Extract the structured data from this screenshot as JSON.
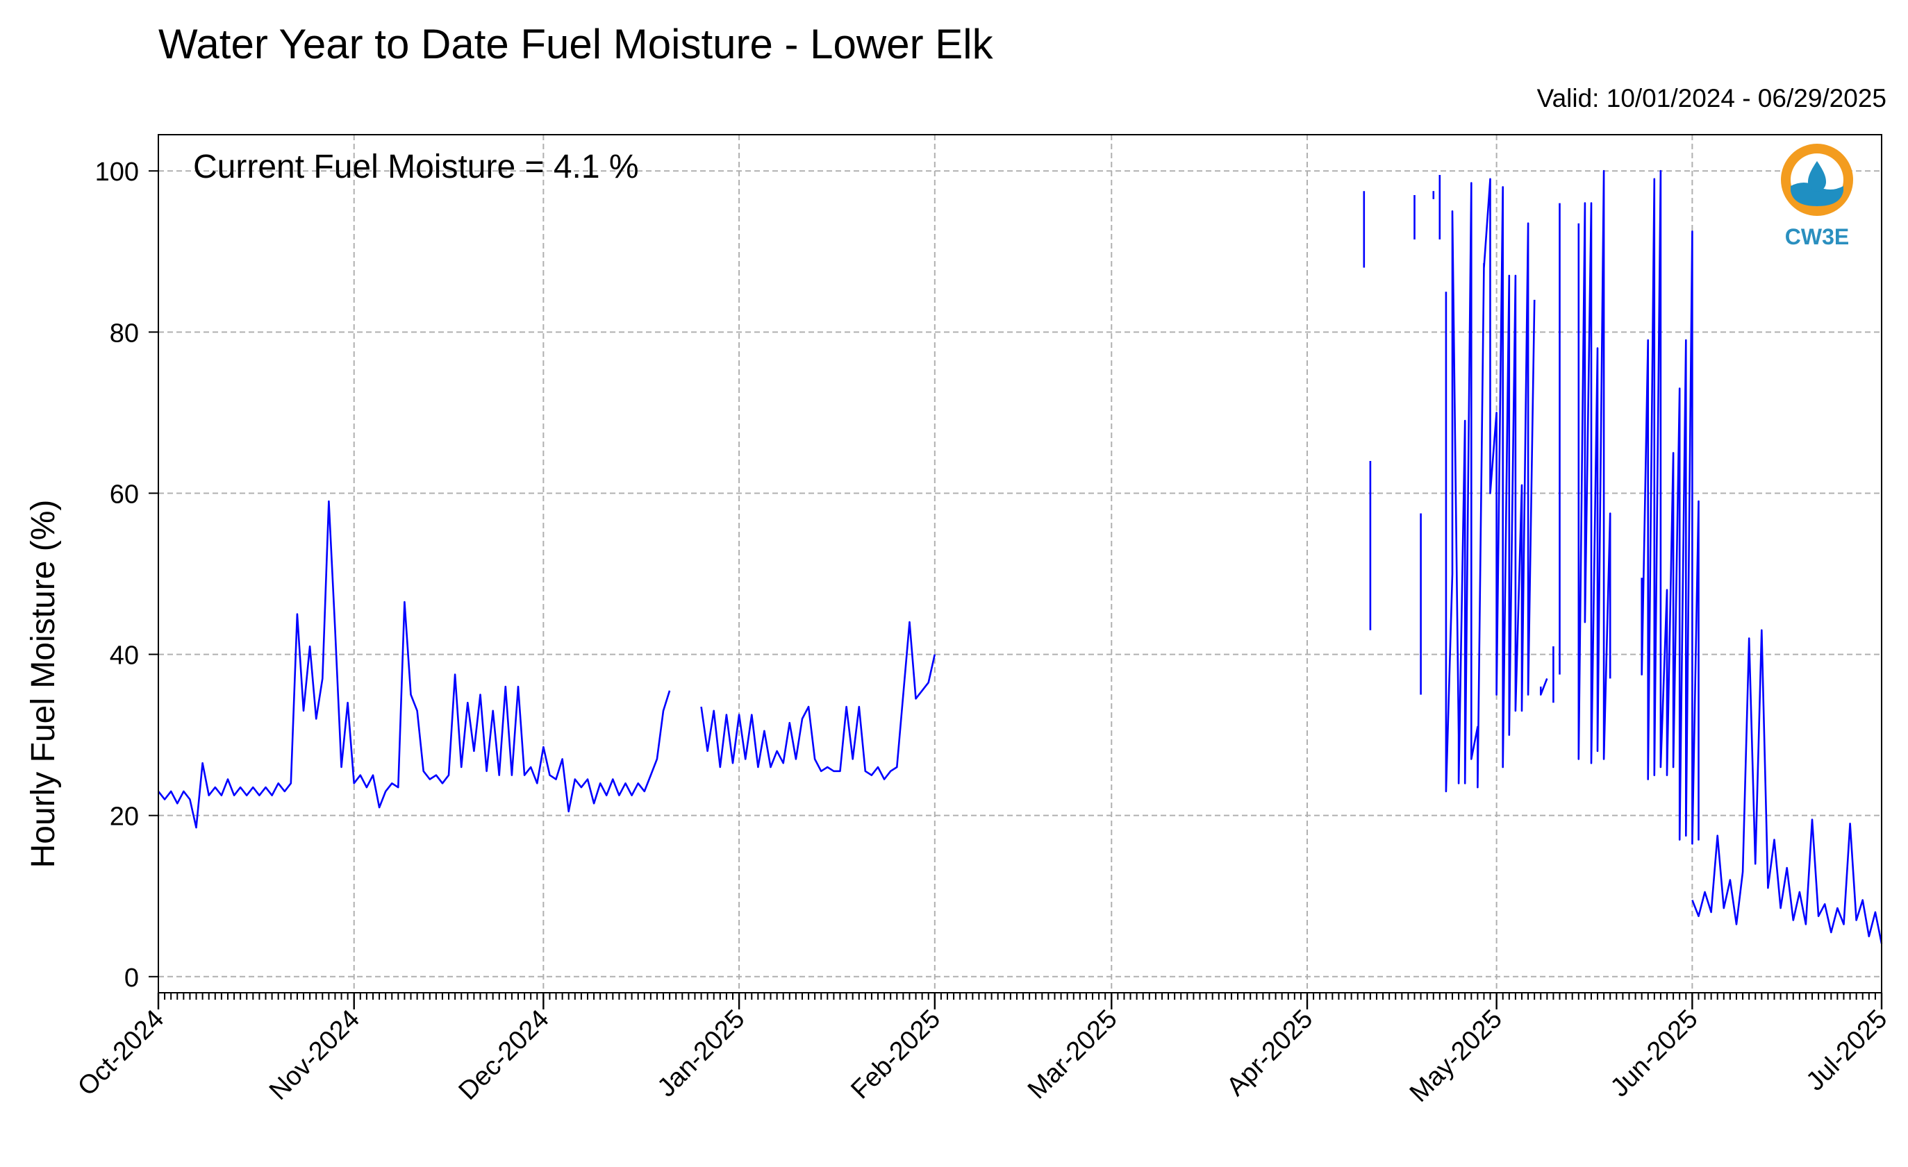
{
  "header": {
    "title": "Water Year to Date Fuel Moisture - Lower Elk",
    "valid": "Valid: 10/01/2024 - 06/29/2025"
  },
  "annotation": {
    "current": "Current Fuel Moisture = 4.1 %"
  },
  "logo": {
    "text": "CW3E",
    "ring_color": "#f39c1f",
    "water_color": "#1f8fc2",
    "icon": "water-drop-icon"
  },
  "chart_data": {
    "type": "line",
    "title": "Water Year to Date Fuel Moisture - Lower Elk",
    "xlabel": "",
    "ylabel": "Hourly Fuel Moisture (%)",
    "xlim": [
      "2024-10-01",
      "2025-07-01"
    ],
    "ylim": [
      -2,
      104.5
    ],
    "grid": true,
    "line_color": "#0000ff",
    "x_ticks": [
      "2024-10-01",
      "2024-11-01",
      "2024-12-01",
      "2025-01-01",
      "2025-02-01",
      "2025-03-01",
      "2025-04-01",
      "2025-05-01",
      "2025-06-01",
      "2025-07-01"
    ],
    "x_tick_labels": [
      "Oct-2024",
      "Nov-2024",
      "Dec-2024",
      "Jan-2025",
      "Feb-2025",
      "Mar-2025",
      "Apr-2025",
      "May-2025",
      "Jun-2025",
      "Jul-2025"
    ],
    "y_ticks": [
      0,
      20,
      40,
      60,
      80,
      100
    ],
    "y_tick_labels": [
      "0",
      "20",
      "40",
      "60",
      "80",
      "100"
    ],
    "series": [
      {
        "segments": [
          [
            [
              "2024-10-01",
              23
            ],
            [
              "2024-10-02",
              22
            ],
            [
              "2024-10-03",
              23
            ],
            [
              "2024-10-04",
              21.5
            ],
            [
              "2024-10-05",
              23
            ],
            [
              "2024-10-06",
              22
            ],
            [
              "2024-10-07",
              18.5
            ],
            [
              "2024-10-08",
              26.5
            ],
            [
              "2024-10-09",
              22.5
            ],
            [
              "2024-10-10",
              23.5
            ],
            [
              "2024-10-11",
              22.5
            ],
            [
              "2024-10-12",
              24.5
            ],
            [
              "2024-10-13",
              22.5
            ],
            [
              "2024-10-14",
              23.5
            ],
            [
              "2024-10-15",
              22.5
            ],
            [
              "2024-10-16",
              23.5
            ],
            [
              "2024-10-17",
              22.5
            ],
            [
              "2024-10-18",
              23.5
            ],
            [
              "2024-10-19",
              22.5
            ],
            [
              "2024-10-20",
              24
            ],
            [
              "2024-10-21",
              23
            ],
            [
              "2024-10-22",
              24
            ],
            [
              "2024-10-23",
              45
            ],
            [
              "2024-10-24",
              33
            ],
            [
              "2024-10-25",
              41
            ],
            [
              "2024-10-26",
              32
            ],
            [
              "2024-10-27",
              37
            ],
            [
              "2024-10-28",
              59
            ],
            [
              "2024-10-29",
              43
            ],
            [
              "2024-10-30",
              26
            ],
            [
              "2024-10-31",
              34
            ],
            [
              "2024-11-01",
              24
            ],
            [
              "2024-11-02",
              25
            ],
            [
              "2024-11-03",
              23.5
            ],
            [
              "2024-11-04",
              25
            ],
            [
              "2024-11-05",
              21
            ],
            [
              "2024-11-06",
              23
            ],
            [
              "2024-11-07",
              24
            ],
            [
              "2024-11-08",
              23.5
            ],
            [
              "2024-11-09",
              46.5
            ],
            [
              "2024-11-10",
              35
            ],
            [
              "2024-11-11",
              33
            ],
            [
              "2024-11-12",
              25.5
            ],
            [
              "2024-11-13",
              24.5
            ],
            [
              "2024-11-14",
              25
            ],
            [
              "2024-11-15",
              24
            ],
            [
              "2024-11-16",
              25
            ],
            [
              "2024-11-17",
              37.5
            ],
            [
              "2024-11-18",
              26
            ],
            [
              "2024-11-19",
              34
            ],
            [
              "2024-11-20",
              28
            ],
            [
              "2024-11-21",
              35
            ],
            [
              "2024-11-22",
              25.5
            ],
            [
              "2024-11-23",
              33
            ],
            [
              "2024-11-24",
              25
            ],
            [
              "2024-11-25",
              36
            ],
            [
              "2024-11-26",
              25
            ],
            [
              "2024-11-27",
              36
            ],
            [
              "2024-11-28",
              25
            ],
            [
              "2024-11-29",
              26
            ],
            [
              "2024-11-30",
              24
            ],
            [
              "2024-12-01",
              28.5
            ],
            [
              "2024-12-02",
              25
            ],
            [
              "2024-12-03",
              24.5
            ],
            [
              "2024-12-04",
              27
            ],
            [
              "2024-12-05",
              20.5
            ],
            [
              "2024-12-06",
              24.5
            ],
            [
              "2024-12-07",
              23.5
            ],
            [
              "2024-12-08",
              24.5
            ],
            [
              "2024-12-09",
              21.5
            ],
            [
              "2024-12-10",
              24
            ],
            [
              "2024-12-11",
              22.5
            ],
            [
              "2024-12-12",
              24.5
            ],
            [
              "2024-12-13",
              22.5
            ],
            [
              "2024-12-14",
              24
            ],
            [
              "2024-12-15",
              22.5
            ],
            [
              "2024-12-16",
              24
            ],
            [
              "2024-12-17",
              23
            ],
            [
              "2024-12-18",
              25
            ],
            [
              "2024-12-19",
              27
            ],
            [
              "2024-12-20",
              33
            ],
            [
              "2024-12-21",
              35.5
            ]
          ],
          [
            [
              "2024-12-26",
              33.5
            ],
            [
              "2024-12-27",
              28
            ],
            [
              "2024-12-28",
              33
            ],
            [
              "2024-12-29",
              26
            ],
            [
              "2024-12-30",
              32.5
            ],
            [
              "2024-12-31",
              26.5
            ],
            [
              "2025-01-01",
              32.5
            ],
            [
              "2025-01-02",
              27
            ],
            [
              "2025-01-03",
              32.5
            ],
            [
              "2025-01-04",
              26
            ],
            [
              "2025-01-05",
              30.5
            ],
            [
              "2025-01-06",
              26
            ],
            [
              "2025-01-07",
              28
            ],
            [
              "2025-01-08",
              26.5
            ],
            [
              "2025-01-09",
              31.5
            ],
            [
              "2025-01-10",
              27
            ],
            [
              "2025-01-11",
              32
            ],
            [
              "2025-01-12",
              33.5
            ],
            [
              "2025-01-13",
              27
            ],
            [
              "2025-01-14",
              25.5
            ],
            [
              "2025-01-15",
              26
            ],
            [
              "2025-01-16",
              25.5
            ],
            [
              "2025-01-17",
              25.5
            ],
            [
              "2025-01-18",
              33.5
            ],
            [
              "2025-01-19",
              27
            ],
            [
              "2025-01-20",
              33.5
            ],
            [
              "2025-01-21",
              25.5
            ],
            [
              "2025-01-22",
              25
            ],
            [
              "2025-01-23",
              26
            ],
            [
              "2025-01-24",
              24.5
            ],
            [
              "2025-01-25",
              25.5
            ],
            [
              "2025-01-26",
              26
            ],
            [
              "2025-01-27",
              35
            ],
            [
              "2025-01-28",
              44
            ],
            [
              "2025-01-29",
              34.5
            ],
            [
              "2025-01-30",
              35.5
            ],
            [
              "2025-01-31",
              36.5
            ],
            [
              "2025-02-01",
              40
            ]
          ],
          [
            [
              "2025-04-10",
              97.5
            ],
            [
              "2025-04-10",
              88
            ]
          ],
          [
            [
              "2025-04-11",
              64
            ],
            [
              "2025-04-11",
              43
            ]
          ],
          [
            [
              "2025-04-18",
              97
            ],
            [
              "2025-04-18",
              91.5
            ]
          ],
          [
            [
              "2025-04-19",
              57.5
            ],
            [
              "2025-04-19",
              35
            ]
          ],
          [
            [
              "2025-04-21",
              97.5
            ],
            [
              "2025-04-21",
              96.5
            ]
          ],
          [
            [
              "2025-04-22",
              99.5
            ],
            [
              "2025-04-22",
              91.5
            ]
          ],
          [
            [
              "2025-04-23",
              85
            ],
            [
              "2025-04-23",
              23
            ],
            [
              "2025-04-24",
              50
            ],
            [
              "2025-04-24",
              95
            ],
            [
              "2025-04-25",
              30
            ],
            [
              "2025-04-25",
              24
            ],
            [
              "2025-04-26",
              69
            ],
            [
              "2025-04-26",
              24
            ],
            [
              "2025-04-27",
              98.5
            ],
            [
              "2025-04-27",
              27
            ],
            [
              "2025-04-28",
              31
            ],
            [
              "2025-04-28",
              23.5
            ],
            [
              "2025-04-29",
              88.5
            ],
            [
              "2025-04-29",
              88
            ],
            [
              "2025-04-30",
              99
            ],
            [
              "2025-04-30",
              60
            ],
            [
              "2025-05-01",
              70
            ],
            [
              "2025-05-01",
              35
            ],
            [
              "2025-05-02",
              98
            ],
            [
              "2025-05-02",
              26
            ],
            [
              "2025-05-03",
              87
            ],
            [
              "2025-05-03",
              30
            ],
            [
              "2025-05-04",
              87
            ],
            [
              "2025-05-04",
              33
            ],
            [
              "2025-05-05",
              61
            ],
            [
              "2025-05-05",
              33
            ],
            [
              "2025-05-06",
              93.5
            ],
            [
              "2025-05-06",
              35
            ],
            [
              "2025-05-07",
              84
            ]
          ],
          [
            [
              "2025-05-08",
              36
            ],
            [
              "2025-05-08",
              35
            ],
            [
              "2025-05-09",
              37
            ]
          ],
          [
            [
              "2025-05-10",
              41
            ],
            [
              "2025-05-10",
              34
            ]
          ],
          [
            [
              "2025-05-11",
              96
            ],
            [
              "2025-05-11",
              37.5
            ]
          ],
          [
            [
              "2025-05-14",
              93.5
            ],
            [
              "2025-05-14",
              27
            ],
            [
              "2025-05-15",
              96
            ],
            [
              "2025-05-15",
              44
            ],
            [
              "2025-05-16",
              96
            ],
            [
              "2025-05-16",
              26.5
            ],
            [
              "2025-05-17",
              78
            ],
            [
              "2025-05-17",
              28
            ],
            [
              "2025-05-18",
              100
            ],
            [
              "2025-05-18",
              27
            ],
            [
              "2025-05-19",
              57.5
            ],
            [
              "2025-05-19",
              37
            ]
          ],
          [
            [
              "2025-05-24",
              49.5
            ],
            [
              "2025-05-24",
              37.5
            ],
            [
              "2025-05-25",
              79
            ],
            [
              "2025-05-25",
              24.5
            ],
            [
              "2025-05-26",
              99
            ],
            [
              "2025-05-26",
              25
            ],
            [
              "2025-05-27",
              100
            ],
            [
              "2025-05-27",
              26
            ],
            [
              "2025-05-28",
              48
            ],
            [
              "2025-05-28",
              25
            ],
            [
              "2025-05-29",
              65
            ],
            [
              "2025-05-29",
              26
            ],
            [
              "2025-05-30",
              73
            ],
            [
              "2025-05-30",
              17
            ],
            [
              "2025-05-31",
              79
            ],
            [
              "2025-05-31",
              17.5
            ],
            [
              "2025-06-01",
              92.5
            ],
            [
              "2025-06-01",
              16.5
            ],
            [
              "2025-06-02",
              59
            ],
            [
              "2025-06-02",
              17
            ],
            [
              "2025-06-02",
              53
            ]
          ],
          [
            [
              "2025-06-01",
              9.5
            ],
            [
              "2025-06-02",
              7.5
            ],
            [
              "2025-06-03",
              10.5
            ],
            [
              "2025-06-04",
              8
            ],
            [
              "2025-06-05",
              17.5
            ],
            [
              "2025-06-06",
              8.5
            ],
            [
              "2025-06-07",
              12
            ],
            [
              "2025-06-08",
              6.5
            ],
            [
              "2025-06-09",
              13
            ],
            [
              "2025-06-10",
              42
            ],
            [
              "2025-06-11",
              14
            ],
            [
              "2025-06-12",
              43
            ],
            [
              "2025-06-13",
              11
            ],
            [
              "2025-06-14",
              17
            ],
            [
              "2025-06-15",
              8.5
            ],
            [
              "2025-06-16",
              13.5
            ],
            [
              "2025-06-17",
              7
            ],
            [
              "2025-06-18",
              10.5
            ],
            [
              "2025-06-19",
              6.5
            ],
            [
              "2025-06-20",
              19.5
            ],
            [
              "2025-06-21",
              7.5
            ],
            [
              "2025-06-22",
              9
            ],
            [
              "2025-06-23",
              5.5
            ],
            [
              "2025-06-24",
              8.5
            ],
            [
              "2025-06-25",
              6.5
            ],
            [
              "2025-06-26",
              19
            ],
            [
              "2025-06-27",
              7
            ],
            [
              "2025-06-28",
              9.5
            ],
            [
              "2025-06-29",
              5
            ],
            [
              "2025-06-30",
              8
            ],
            [
              "2025-07-01",
              4.1
            ]
          ]
        ]
      }
    ]
  }
}
